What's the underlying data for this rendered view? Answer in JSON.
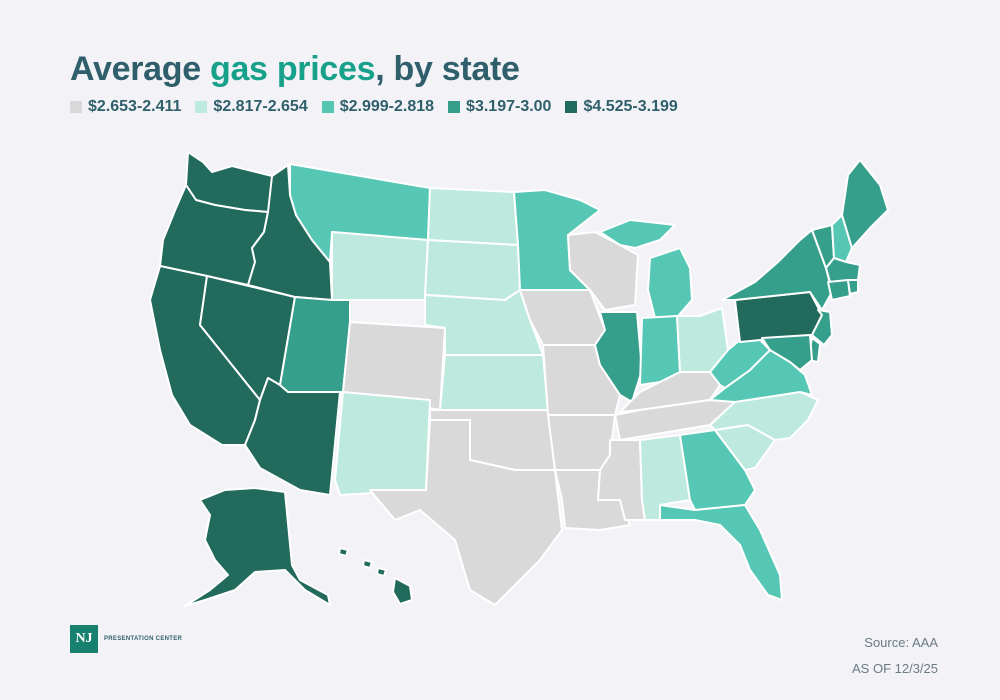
{
  "title": {
    "part1": "Average ",
    "highlight": "gas prices",
    "part2": ", by state"
  },
  "legend": [
    {
      "label": "$2.653-2.411",
      "color": "#d9d9d9"
    },
    {
      "label": "$2.817-2.654",
      "color": "#bde9de"
    },
    {
      "label": "$2.999-2.818",
      "color": "#55c7b4"
    },
    {
      "label": "$3.197-3.00",
      "color": "#359f8c"
    },
    {
      "label": "$4.525-3.199",
      "color": "#226a5c"
    }
  ],
  "states": {
    "WA": 4,
    "OR": 4,
    "CA": 4,
    "NV": 4,
    "ID": 4,
    "AZ": 4,
    "AK": 4,
    "HI": 4,
    "PA": 4,
    "UT": 3,
    "IL": 3,
    "NY": 3,
    "VT": 3,
    "ME": 3,
    "MA": 3,
    "CT": 3,
    "RI": 3,
    "NJ": 3,
    "MD": 3,
    "DE": 3,
    "MT": 2,
    "MN": 2,
    "MI": 2,
    "IN": 2,
    "WV": 2,
    "VA": 2,
    "GA": 2,
    "FL": 2,
    "NH": 2,
    "WY": 1,
    "ND": 1,
    "SD": 1,
    "NE": 1,
    "KS": 1,
    "NM": 1,
    "OH": 1,
    "NC": 1,
    "SC": 1,
    "AL": 1,
    "CO": 0,
    "TX": 0,
    "OK": 0,
    "IA": 0,
    "MO": 0,
    "AR": 0,
    "LA": 0,
    "MS": 0,
    "TN": 0,
    "KY": 0,
    "WI": 0
  },
  "logo": {
    "badge": "NJ",
    "text": "PRESENTATION CENTER"
  },
  "footer": {
    "source": "Source: AAA",
    "date": "AS OF 12/3/25"
  }
}
